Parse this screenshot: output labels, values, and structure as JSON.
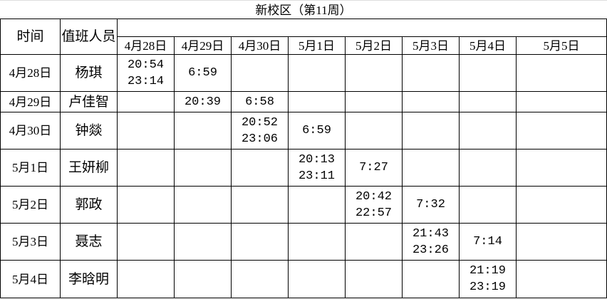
{
  "title": "新校区（第11周）",
  "headers": {
    "time": "时间",
    "staff": "值班人员"
  },
  "dates": [
    "4月28日",
    "4月29日",
    "4月30日",
    "5月1日",
    "5月2日",
    "5月3日",
    "5月4日",
    "5月5日"
  ],
  "rows": [
    {
      "date": "4月28日",
      "name": "杨琪",
      "cells": [
        "20:54\n23:14",
        "6:59",
        "",
        "",
        "",
        "",
        "",
        ""
      ]
    },
    {
      "date": "4月29日",
      "name": "卢佳智",
      "cells": [
        "",
        "20:39",
        "6:58",
        "",
        "",
        "",
        "",
        ""
      ]
    },
    {
      "date": "4月30日",
      "name": "钟燚",
      "cells": [
        "",
        "",
        "20:52\n23:06",
        "6:59",
        "",
        "",
        "",
        ""
      ]
    },
    {
      "date": "5月1日",
      "name": "王妍柳",
      "cells": [
        "",
        "",
        "",
        "20:13\n23:11",
        "7:27",
        "",
        "",
        ""
      ]
    },
    {
      "date": "5月2日",
      "name": "郭政",
      "cells": [
        "",
        "",
        "",
        "",
        "20:42\n22:57",
        "7:32",
        "",
        ""
      ]
    },
    {
      "date": "5月3日",
      "name": "聂志",
      "cells": [
        "",
        "",
        "",
        "",
        "",
        "21:43\n23:26",
        "7:14",
        ""
      ]
    },
    {
      "date": "5月4日",
      "name": "李晗明",
      "cells": [
        "",
        "",
        "",
        "",
        "",
        "",
        "21:19\n23:19",
        ""
      ]
    }
  ]
}
